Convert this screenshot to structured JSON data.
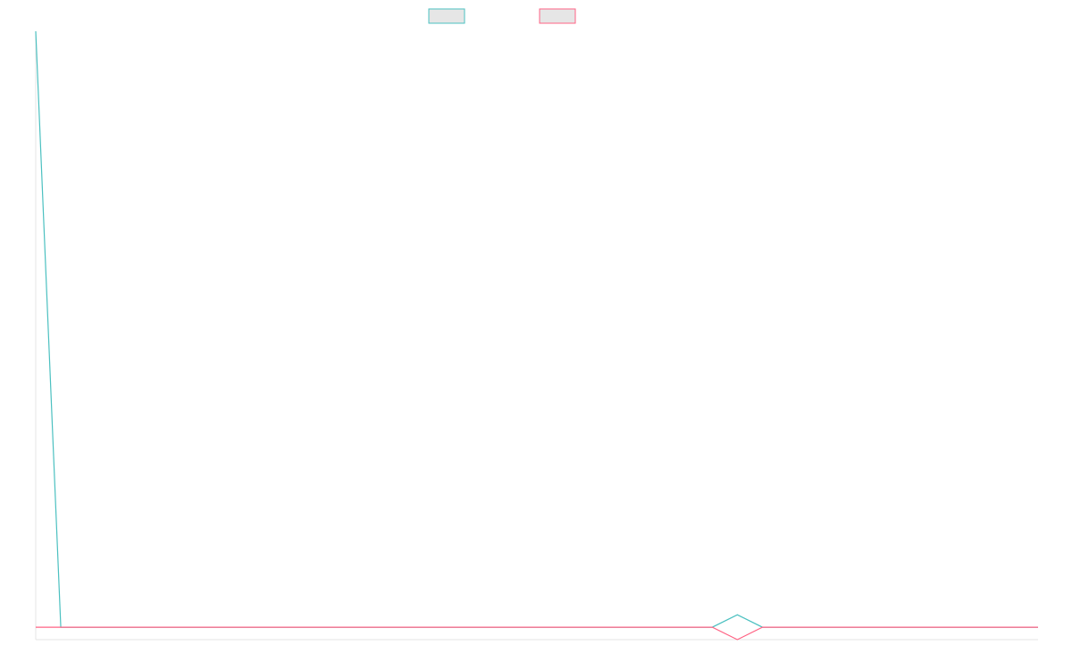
{
  "chart_data": {
    "type": "line",
    "title": "",
    "xlabel": "",
    "ylabel": "",
    "legend": {
      "placement": "top-center",
      "show_labels": false
    },
    "grid": false,
    "x": [
      0,
      1,
      2,
      3,
      4,
      5,
      6,
      7,
      8,
      9,
      10,
      11,
      12,
      13,
      14,
      15,
      16,
      17,
      18,
      19,
      20,
      21,
      22,
      23,
      24,
      25,
      26,
      27,
      28,
      29,
      30,
      31,
      32,
      33,
      34,
      35,
      36,
      37,
      38,
      39,
      40
    ],
    "ylim": [
      -0.5,
      24
    ],
    "series": [
      {
        "name": "",
        "color": "#4bc0c0",
        "fill": "#e6e6e6",
        "values": [
          24,
          0,
          0,
          0,
          0,
          0,
          0,
          0,
          0,
          0,
          0,
          0,
          0,
          0,
          0,
          0,
          0,
          0,
          0,
          0,
          0,
          0,
          0,
          0,
          0,
          0,
          0,
          0,
          0.5,
          0,
          0,
          0,
          0,
          0,
          0,
          0,
          0,
          0,
          0,
          0,
          0
        ]
      },
      {
        "name": "",
        "color": "#ff6384",
        "fill": "#e6e6e6",
        "values": [
          0,
          0,
          0,
          0,
          0,
          0,
          0,
          0,
          0,
          0,
          0,
          0,
          0,
          0,
          0,
          0,
          0,
          0,
          0,
          0,
          0,
          0,
          0,
          0,
          0,
          0,
          0,
          0,
          -0.5,
          0,
          0,
          0,
          0,
          0,
          0,
          0,
          0,
          0,
          0,
          0,
          0
        ]
      }
    ]
  }
}
